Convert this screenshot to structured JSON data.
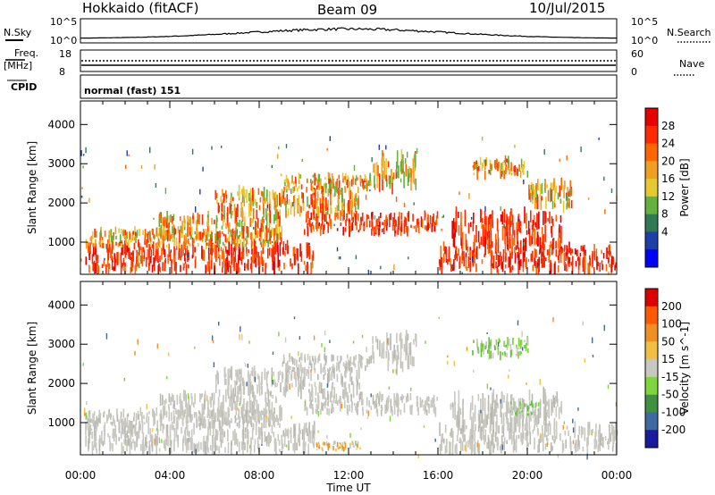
{
  "header": {
    "station": "Hokkaido (fitACF)",
    "beam": "Beam 09",
    "date": "10/Jul/2015"
  },
  "top_panels": {
    "nsky_label": "N.Sky",
    "nsearch_label": "N.Search",
    "nsky_ticks": [
      "10^5",
      "10^0"
    ],
    "nsky_right_ticks": [
      "10^5",
      "10^0"
    ],
    "freq_label_line1": "Freq.",
    "freq_label_line2": "[MHz]",
    "freq_ticks": [
      "18",
      "8"
    ],
    "nave_label": "Nave",
    "nave_ticks": [
      "60",
      "0"
    ],
    "cpid_label": "CPID",
    "cpid_text": "normal (fast) 151"
  },
  "colors": {
    "power_scale": [
      "#0000ff",
      "#1f3fa8",
      "#2f7a54",
      "#66b040",
      "#e6c830",
      "#f0a020",
      "#ff6600",
      "#ff2a00",
      "#e60000"
    ],
    "velocity_scale": [
      "#1a1aa0",
      "#3f6aa0",
      "#3f9040",
      "#7cd63c",
      "#c8c8c0",
      "#f0c040",
      "#f09020",
      "#ff5a00",
      "#dd0000"
    ],
    "gray": "#c8c8c0"
  },
  "chart_data": [
    {
      "type": "heatmap",
      "name": "power",
      "ylabel": "Slant Range [km]",
      "xlabel": "Time UT",
      "xlim": [
        "00:00",
        "24:00"
      ],
      "ylim": [
        180,
        4600
      ],
      "x_ticks": [
        "00:00",
        "04:00",
        "08:00",
        "12:00",
        "16:00",
        "20:00",
        "00:00"
      ],
      "y_ticks": [
        1000,
        2000,
        3000,
        4000
      ],
      "colorbar": {
        "label": "Power [dB]",
        "ticks": [
          "28",
          "24",
          "20",
          "16",
          "12",
          "8",
          "4"
        ]
      },
      "bands": [
        {
          "t0": 0.2,
          "t1": 10.5,
          "r0": 280,
          "r1": 900,
          "level": "high"
        },
        {
          "t0": 0.2,
          "t1": 9.0,
          "r0": 900,
          "r1": 1300,
          "level": "mid"
        },
        {
          "t0": 3.5,
          "t1": 9.0,
          "r0": 1100,
          "r1": 1700,
          "level": "mid"
        },
        {
          "t0": 6.0,
          "t1": 12.5,
          "r0": 1700,
          "r1": 2300,
          "level": "mid"
        },
        {
          "t0": 10.0,
          "t1": 16.0,
          "r0": 1250,
          "r1": 1700,
          "level": "high"
        },
        {
          "t0": 9.0,
          "t1": 13.0,
          "r0": 2300,
          "r1": 2700,
          "level": "mid"
        },
        {
          "t0": 13.0,
          "t1": 15.0,
          "r0": 2400,
          "r1": 3200,
          "level": "mid"
        },
        {
          "t0": 16.0,
          "t1": 24.0,
          "r0": 300,
          "r1": 900,
          "level": "high"
        },
        {
          "t0": 16.5,
          "t1": 21.5,
          "r0": 900,
          "r1": 1700,
          "level": "high"
        },
        {
          "t0": 17.5,
          "t1": 20.0,
          "r0": 2700,
          "r1": 3100,
          "level": "mid"
        },
        {
          "t0": 20.0,
          "t1": 22.0,
          "r0": 1900,
          "r1": 2500,
          "level": "mid"
        }
      ]
    },
    {
      "type": "heatmap",
      "name": "velocity",
      "ylabel": "Slant Range [km]",
      "xlabel": "Time UT",
      "xlim": [
        "00:00",
        "24:00"
      ],
      "ylim": [
        180,
        4600
      ],
      "x_ticks": [
        "00:00",
        "04:00",
        "08:00",
        "12:00",
        "16:00",
        "20:00",
        "00:00"
      ],
      "y_ticks": [
        1000,
        2000,
        3000,
        4000
      ],
      "colorbar": {
        "label": "Velocity [m s^-1]",
        "ticks": [
          "200",
          "100",
          "50",
          "15",
          "-15",
          "-50",
          "-100",
          "-200"
        ]
      },
      "bands": [
        {
          "t0": 0.2,
          "t1": 10.5,
          "r0": 280,
          "r1": 900,
          "level": "gray"
        },
        {
          "t0": 0.2,
          "t1": 9.0,
          "r0": 900,
          "r1": 1300,
          "level": "gray"
        },
        {
          "t0": 3.5,
          "t1": 9.0,
          "r0": 1100,
          "r1": 1700,
          "level": "gray"
        },
        {
          "t0": 6.0,
          "t1": 12.5,
          "r0": 1700,
          "r1": 2300,
          "level": "gray"
        },
        {
          "t0": 10.0,
          "t1": 16.0,
          "r0": 1250,
          "r1": 1700,
          "level": "gray"
        },
        {
          "t0": 9.0,
          "t1": 13.0,
          "r0": 2300,
          "r1": 2700,
          "level": "gray"
        },
        {
          "t0": 13.0,
          "t1": 15.0,
          "r0": 2400,
          "r1": 3200,
          "level": "gray"
        },
        {
          "t0": 16.0,
          "t1": 24.0,
          "r0": 300,
          "r1": 900,
          "level": "gray"
        },
        {
          "t0": 16.5,
          "t1": 21.5,
          "r0": 900,
          "r1": 1700,
          "level": "gray"
        },
        {
          "t0": 17.5,
          "t1": 20.0,
          "r0": 2700,
          "r1": 3100,
          "level": "green"
        },
        {
          "t0": 19.0,
          "t1": 20.5,
          "r0": 1200,
          "r1": 1500,
          "level": "green"
        },
        {
          "t0": 10.5,
          "t1": 12.5,
          "r0": 300,
          "r1": 500,
          "level": "orange"
        }
      ]
    }
  ]
}
